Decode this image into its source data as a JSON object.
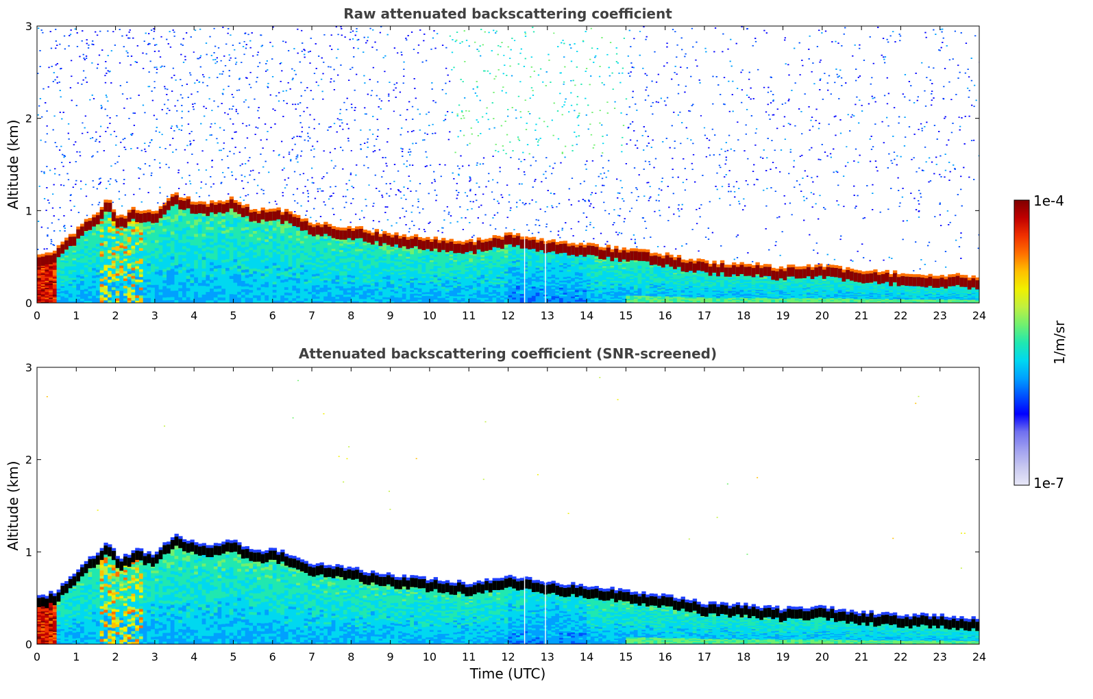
{
  "chart_data": [
    {
      "type": "heatmap",
      "title": "Raw attenuated backscattering coefficient",
      "xlabel": "",
      "ylabel": "Altitude (km)",
      "xlim": [
        0,
        24
      ],
      "ylim": [
        0,
        3
      ],
      "x_ticks": [
        "0",
        "1",
        "2",
        "3",
        "4",
        "5",
        "6",
        "7",
        "8",
        "9",
        "10",
        "11",
        "12",
        "13",
        "14",
        "15",
        "16",
        "17",
        "18",
        "19",
        "20",
        "21",
        "22",
        "23",
        "24"
      ],
      "y_ticks": [
        "0",
        "1",
        "2",
        "3"
      ],
      "screened": false
    },
    {
      "type": "heatmap",
      "title": "Attenuated backscattering coefficient (SNR-screened)",
      "xlabel": "Time (UTC)",
      "ylabel": "Altitude (km)",
      "xlim": [
        0,
        24
      ],
      "ylim": [
        0,
        3
      ],
      "x_ticks": [
        "0",
        "1",
        "2",
        "3",
        "4",
        "5",
        "6",
        "7",
        "8",
        "9",
        "10",
        "11",
        "12",
        "13",
        "14",
        "15",
        "16",
        "17",
        "18",
        "19",
        "20",
        "21",
        "22",
        "23",
        "24"
      ],
      "y_ticks": [
        "0",
        "1",
        "2",
        "3"
      ],
      "screened": true
    }
  ],
  "layer_top_km": {
    "time_utc": [
      0,
      0.5,
      0.8,
      1.2,
      1.5,
      1.8,
      2.1,
      2.5,
      3.0,
      3.5,
      4.0,
      4.5,
      5.0,
      5.5,
      6.0,
      6.5,
      7.0,
      7.5,
      8.0,
      9.0,
      10.0,
      11.0,
      12.0,
      13.0,
      14.0,
      15.0,
      16.0,
      17.0,
      18.0,
      19.0,
      20.0,
      21.0,
      22.0,
      23.0,
      24.0
    ],
    "altitude_km": [
      0.48,
      0.55,
      0.68,
      0.85,
      0.95,
      1.1,
      0.9,
      1.0,
      0.95,
      1.15,
      1.08,
      1.06,
      1.12,
      0.98,
      1.0,
      0.95,
      0.85,
      0.82,
      0.8,
      0.72,
      0.68,
      0.64,
      0.72,
      0.66,
      0.6,
      0.56,
      0.5,
      0.42,
      0.4,
      0.36,
      0.38,
      0.32,
      0.3,
      0.28,
      0.26
    ]
  },
  "colorbar": {
    "label": "1/m/sr",
    "max_label": "1e-4",
    "min_label": "1e-7",
    "colors": [
      "#e8e8f8",
      "#c8c8f0",
      "#a0a0f0",
      "#7070f0",
      "#0000ff",
      "#0050ff",
      "#00a0ff",
      "#00d8f0",
      "#20e8b0",
      "#70f070",
      "#c0f040",
      "#f0f000",
      "#ffc000",
      "#ff7000",
      "#f03000",
      "#c00000",
      "#800000"
    ]
  }
}
